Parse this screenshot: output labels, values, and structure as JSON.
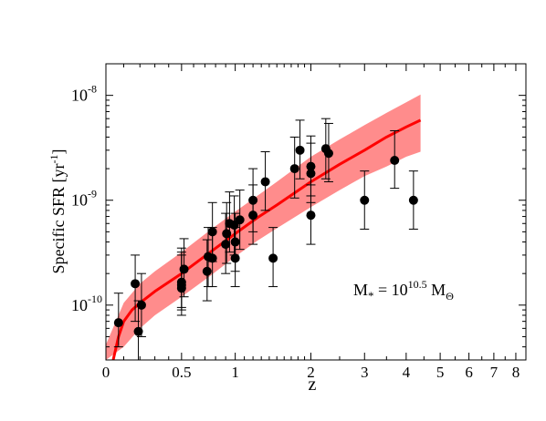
{
  "chart_data": {
    "type": "scatter",
    "title": "",
    "xlabel": "z",
    "ylabel": "Specific SFR [yr",
    "ylabel_sup": "-1",
    "ylabel_end": "]",
    "x_scale": "log(1+z)",
    "y_scale": "log",
    "xlim": [
      0,
      8.5
    ],
    "ylim": [
      3e-11,
      2e-08
    ],
    "x_ticks": [
      {
        "value": 0,
        "label": "0"
      },
      {
        "value": 0.5,
        "label": "0.5"
      },
      {
        "value": 1,
        "label": "1"
      },
      {
        "value": 2,
        "label": "2"
      },
      {
        "value": 3,
        "label": "3"
      },
      {
        "value": 4,
        "label": "4"
      },
      {
        "value": 5,
        "label": "5"
      },
      {
        "value": 6,
        "label": "6"
      },
      {
        "value": 7,
        "label": "7"
      },
      {
        "value": 8,
        "label": "8"
      }
    ],
    "y_ticks": [
      {
        "value": 1e-10,
        "base": "10",
        "exp": "-10"
      },
      {
        "value": 1e-09,
        "base": "10",
        "exp": "-9"
      },
      {
        "value": 1e-08,
        "base": "10",
        "exp": "-8"
      }
    ],
    "annotation": {
      "lhs": "M",
      "lhs_sub": "*",
      "eq": " = 10",
      "exp": "10.5",
      "unit": " M",
      "unit_sub": "Θ"
    },
    "points": [
      {
        "x": 0.07,
        "y": 6.8e-11,
        "ylo": 4e-11,
        "yhi": 1.3e-10
      },
      {
        "x": 0.17,
        "y": 1.6e-10,
        "ylo": 7e-11,
        "yhi": 3e-10
      },
      {
        "x": 0.19,
        "y": 5.6e-11,
        "ylo": 3e-11,
        "yhi": 1.1e-10
      },
      {
        "x": 0.21,
        "y": 1e-10,
        "ylo": 5e-11,
        "yhi": 2e-10
      },
      {
        "x": 0.5,
        "y": 1.45e-10,
        "ylo": 8e-11,
        "yhi": 3e-10
      },
      {
        "x": 0.5,
        "y": 1.55e-10,
        "ylo": 9e-11,
        "yhi": 3.2e-10
      },
      {
        "x": 0.5,
        "y": 1.65e-10,
        "ylo": 9.5e-11,
        "yhi": 3.5e-10
      },
      {
        "x": 0.52,
        "y": 2.2e-10,
        "ylo": 1.2e-10,
        "yhi": 4.3e-10
      },
      {
        "x": 0.72,
        "y": 2.1e-10,
        "ylo": 1.1e-10,
        "yhi": 4.2e-10
      },
      {
        "x": 0.73,
        "y": 2.9e-10,
        "ylo": 1.5e-10,
        "yhi": 5.5e-10
      },
      {
        "x": 0.77,
        "y": 2.8e-10,
        "ylo": 1.5e-10,
        "yhi": 5.5e-10
      },
      {
        "x": 0.77,
        "y": 5e-10,
        "ylo": 2.6e-10,
        "yhi": 9.5e-10
      },
      {
        "x": 0.9,
        "y": 3.8e-10,
        "ylo": 2e-10,
        "yhi": 7.5e-10
      },
      {
        "x": 0.91,
        "y": 4.8e-10,
        "ylo": 2.5e-10,
        "yhi": 9.5e-10
      },
      {
        "x": 0.94,
        "y": 6e-10,
        "ylo": 3.2e-10,
        "yhi": 1.2e-09
      },
      {
        "x": 0.99,
        "y": 5.8e-10,
        "ylo": 3e-10,
        "yhi": 1.1e-09
      },
      {
        "x": 1.0,
        "y": 2.8e-10,
        "ylo": 1.5e-10,
        "yhi": 5.5e-10
      },
      {
        "x": 1.0,
        "y": 4e-10,
        "ylo": 2.1e-10,
        "yhi": 7.5e-10
      },
      {
        "x": 1.05,
        "y": 6.5e-10,
        "ylo": 3.4e-10,
        "yhi": 1.25e-09
      },
      {
        "x": 1.2,
        "y": 7.2e-10,
        "ylo": 3.8e-10,
        "yhi": 1.4e-09
      },
      {
        "x": 1.2,
        "y": 1e-09,
        "ylo": 5e-10,
        "yhi": 2e-09
      },
      {
        "x": 1.35,
        "y": 1.5e-09,
        "ylo": 8e-10,
        "yhi": 2.9e-09
      },
      {
        "x": 1.45,
        "y": 2.8e-10,
        "ylo": 1.5e-10,
        "yhi": 5.5e-10
      },
      {
        "x": 1.75,
        "y": 2e-09,
        "ylo": 1.05e-09,
        "yhi": 4e-09
      },
      {
        "x": 1.83,
        "y": 3e-09,
        "ylo": 1.6e-09,
        "yhi": 5.8e-09
      },
      {
        "x": 2.0,
        "y": 7.2e-10,
        "ylo": 3.8e-10,
        "yhi": 1.4e-09
      },
      {
        "x": 2.0,
        "y": 1.8e-09,
        "ylo": 9.5e-10,
        "yhi": 3.5e-09
      },
      {
        "x": 2.0,
        "y": 2.1e-09,
        "ylo": 1.1e-09,
        "yhi": 4.1e-09
      },
      {
        "x": 2.25,
        "y": 3.1e-09,
        "ylo": 1.6e-09,
        "yhi": 6e-09
      },
      {
        "x": 2.3,
        "y": 2.8e-09,
        "ylo": 1.5e-09,
        "yhi": 5.4e-09
      },
      {
        "x": 3.0,
        "y": 1e-09,
        "ylo": 5.3e-10,
        "yhi": 1.9e-09
      },
      {
        "x": 3.7,
        "y": 2.4e-09,
        "ylo": 1.3e-09,
        "yhi": 4.6e-09
      },
      {
        "x": 4.2,
        "y": 1e-09,
        "ylo": 5.3e-10,
        "yhi": 1.9e-09
      }
    ],
    "model_curve": {
      "color": "#ff0000",
      "x": [
        0.04,
        0.07,
        0.1,
        0.15,
        0.2,
        0.3,
        0.5,
        0.75,
        1.0,
        1.25,
        1.5,
        2.0,
        2.5,
        3.0,
        3.5,
        4.0,
        4.4
      ],
      "y": [
        3e-11,
        5e-11,
        7e-11,
        9e-11,
        1.05e-10,
        1.35e-10,
        2e-10,
        3.2e-10,
        4.8e-10,
        6.8e-10,
        9e-10,
        1.5e-09,
        2.2e-09,
        3e-09,
        4e-09,
        5e-09,
        5.8e-09
      ]
    },
    "model_band": {
      "color": "#ff8c8c",
      "x": [
        0.0,
        0.1,
        0.2,
        0.3,
        0.5,
        0.75,
        1.0,
        1.25,
        1.5,
        2.0,
        2.5,
        3.0,
        3.5,
        4.0,
        4.4
      ],
      "y_high": [
        4.2e-11,
        1.05e-10,
        1.6e-10,
        2.1e-10,
        3.2e-10,
        5.2e-10,
        7.8e-10,
        1.1e-09,
        1.5e-09,
        2.6e-09,
        3.8e-09,
        5.2e-09,
        6.8e-09,
        8.6e-09,
        1.02e-08
      ],
      "y_low": [
        3e-11,
        4e-11,
        6e-11,
        8e-11,
        1.2e-10,
        1.9e-10,
        2.9e-10,
        4.1e-10,
        5.4e-10,
        8.6e-10,
        1.25e-09,
        1.7e-09,
        2.1e-09,
        2.6e-09,
        2.9e-09
      ]
    }
  }
}
